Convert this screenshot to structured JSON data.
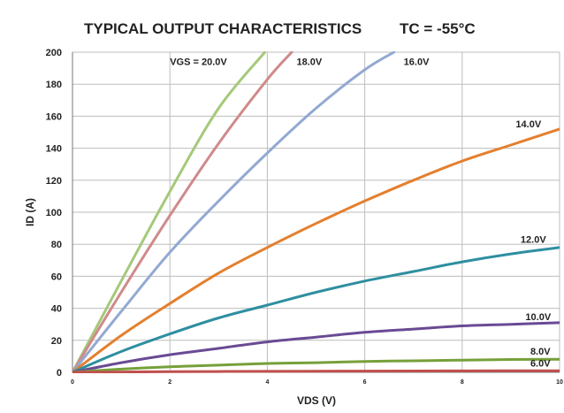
{
  "chart_data": {
    "type": "line",
    "title": "TYPICAL OUTPUT CHARACTERISTICS",
    "subtitle": "TC = -55°C",
    "xlabel": "VDS (V)",
    "ylabel": "ID (A)",
    "xlim": [
      0,
      10
    ],
    "ylim": [
      0,
      200
    ],
    "x_ticks": [
      "0",
      "2",
      "4",
      "6",
      "8",
      "10"
    ],
    "y_ticks": [
      "0",
      "20",
      "40",
      "60",
      "80",
      "100",
      "120",
      "140",
      "160",
      "180",
      "200"
    ],
    "grid": true,
    "series": [
      {
        "name": "VGS = 20.0V",
        "color": "#a5c97a",
        "points": [
          [
            0,
            0
          ],
          [
            1,
            57
          ],
          [
            2,
            113
          ],
          [
            3,
            165
          ],
          [
            3.95,
            200
          ]
        ]
      },
      {
        "name": "18.0V",
        "color": "#d08a8a",
        "points": [
          [
            0,
            0
          ],
          [
            1,
            50
          ],
          [
            2,
            98
          ],
          [
            3,
            143
          ],
          [
            4,
            183
          ],
          [
            4.5,
            200
          ]
        ]
      },
      {
        "name": "16.0V",
        "color": "#92a9d2",
        "points": [
          [
            0,
            0
          ],
          [
            1,
            38
          ],
          [
            2,
            75
          ],
          [
            3,
            107
          ],
          [
            4,
            137
          ],
          [
            5,
            165
          ],
          [
            6,
            189
          ],
          [
            6.6,
            200
          ]
        ]
      },
      {
        "name": "14.0V",
        "color": "#e47f2e",
        "points": [
          [
            0,
            0
          ],
          [
            1,
            23
          ],
          [
            2,
            43
          ],
          [
            3,
            62
          ],
          [
            4,
            78
          ],
          [
            5,
            93
          ],
          [
            6,
            107
          ],
          [
            7,
            120
          ],
          [
            8,
            132
          ],
          [
            9,
            142
          ],
          [
            10,
            152
          ]
        ]
      },
      {
        "name": "12.0V",
        "color": "#2e8fa0",
        "points": [
          [
            0,
            0
          ],
          [
            1,
            13
          ],
          [
            2,
            24
          ],
          [
            3,
            34
          ],
          [
            4,
            42
          ],
          [
            5,
            50
          ],
          [
            6,
            57
          ],
          [
            7,
            63
          ],
          [
            8,
            69
          ],
          [
            9,
            74
          ],
          [
            10,
            78
          ]
        ]
      },
      {
        "name": "10.0V",
        "color": "#6a4a94",
        "points": [
          [
            0,
            0
          ],
          [
            1,
            6
          ],
          [
            2,
            11
          ],
          [
            3,
            15
          ],
          [
            4,
            19
          ],
          [
            5,
            22
          ],
          [
            6,
            25
          ],
          [
            7,
            27
          ],
          [
            8,
            29
          ],
          [
            9,
            30
          ],
          [
            10,
            31
          ]
        ]
      },
      {
        "name": "8.0V",
        "color": "#76a03a",
        "points": [
          [
            0,
            0
          ],
          [
            1,
            2
          ],
          [
            2,
            3.5
          ],
          [
            3,
            4.5
          ],
          [
            4,
            5.5
          ],
          [
            5,
            6
          ],
          [
            6,
            6.8
          ],
          [
            7,
            7.2
          ],
          [
            8,
            7.6
          ],
          [
            9,
            8
          ],
          [
            10,
            8.2
          ]
        ]
      },
      {
        "name": "6.0V",
        "color": "#c0504d",
        "points": [
          [
            0,
            0
          ],
          [
            2,
            0.4
          ],
          [
            4,
            0.6
          ],
          [
            6,
            0.8
          ],
          [
            8,
            0.9
          ],
          [
            10,
            1
          ]
        ]
      }
    ]
  }
}
